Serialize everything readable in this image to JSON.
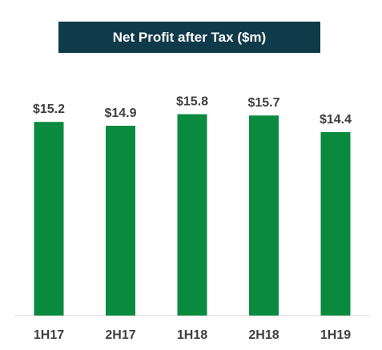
{
  "chart_data": {
    "type": "bar",
    "title": "Net Profit after Tax ($m)",
    "categories": [
      "1H17",
      "2H17",
      "1H18",
      "2H18",
      "1H19"
    ],
    "values": [
      15.2,
      14.9,
      15.8,
      15.7,
      14.4
    ],
    "data_labels": [
      "$15.2",
      "$14.9",
      "$15.8",
      "$15.7",
      "$14.4"
    ],
    "ylim": [
      0,
      16.5
    ],
    "grid": false,
    "legend": "none",
    "bar_color": "#0a8a3e",
    "axis_color": "#d9d9d9",
    "title_bg": "#0f3a4a"
  }
}
